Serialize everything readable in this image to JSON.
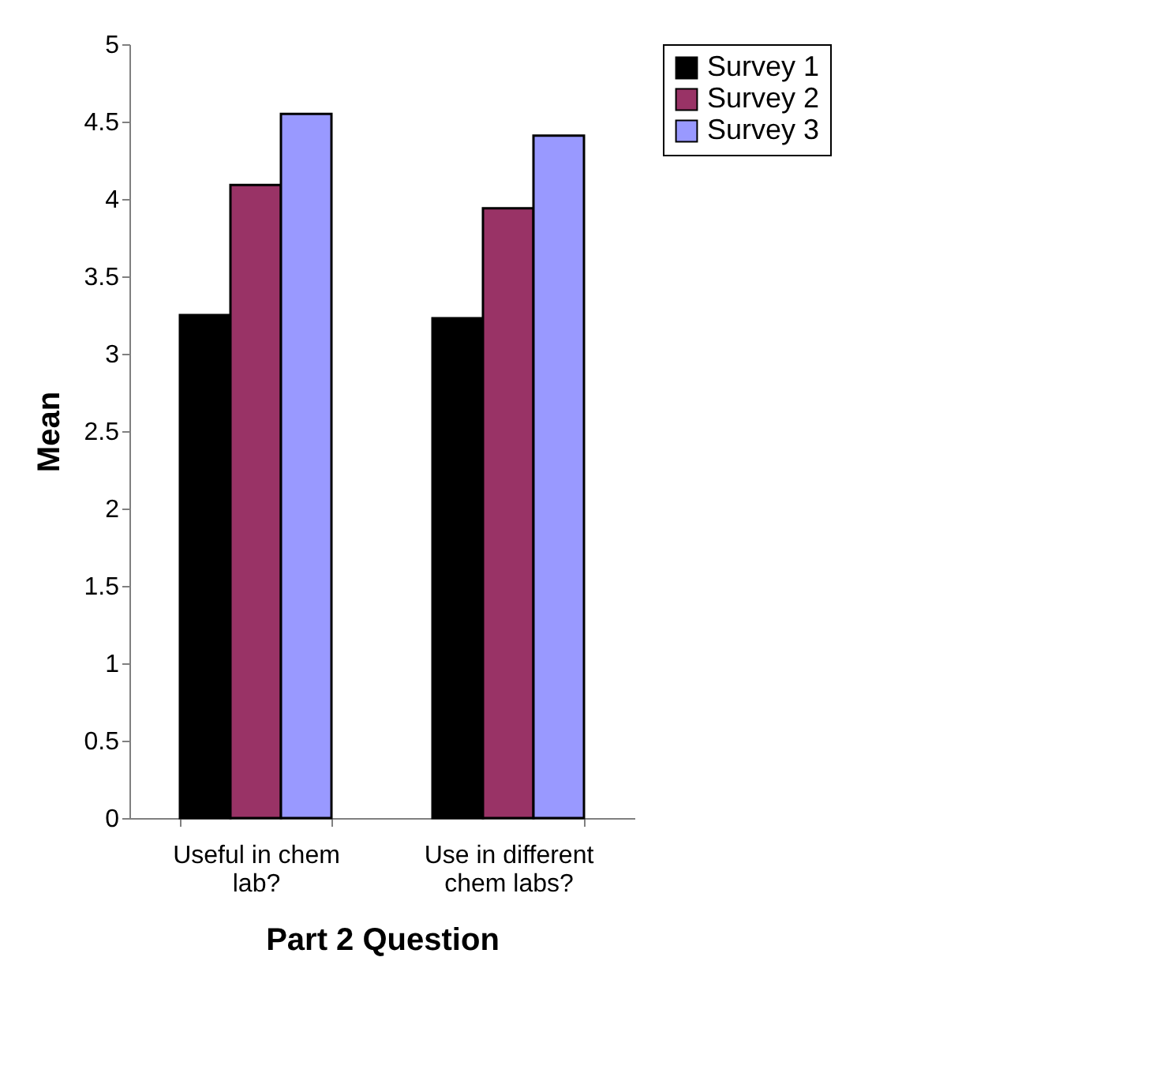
{
  "chart_data": {
    "type": "bar",
    "xlabel": "Part 2 Question",
    "ylabel": "Mean",
    "categories": [
      "Useful in chem lab?",
      "Use in different chem labs?"
    ],
    "series": [
      {
        "name": "Survey 1",
        "color": "#000000",
        "values": [
          3.25,
          3.23
        ]
      },
      {
        "name": "Survey 2",
        "color": "#993366",
        "values": [
          4.09,
          3.94
        ]
      },
      {
        "name": "Survey 3",
        "color": "#9999ff",
        "values": [
          4.55,
          4.41
        ]
      }
    ],
    "ylim": [
      0,
      5
    ],
    "yticks": [
      0,
      0.5,
      1,
      1.5,
      2,
      2.5,
      3,
      3.5,
      4,
      4.5,
      5
    ],
    "grid": false,
    "legend": "right"
  }
}
